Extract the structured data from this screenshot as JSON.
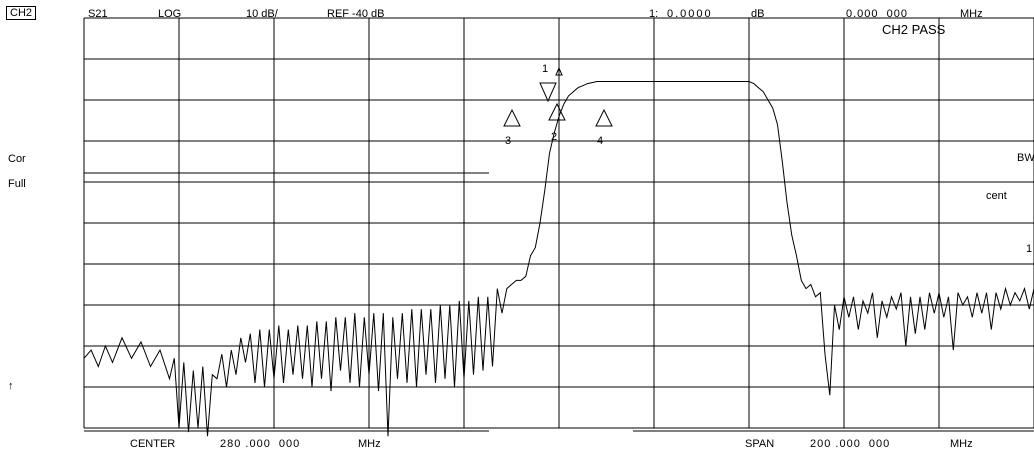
{
  "header": {
    "channel": "CH2",
    "parameter": "S21",
    "format": "LOG",
    "scale": "10 dB/",
    "reference": "REF -40 dB",
    "marker_index": "1:",
    "marker_value": "0.0000",
    "marker_unit": "dB",
    "marker_freq": "0.000  000",
    "marker_freq_unit": "MHz"
  },
  "status": {
    "pass": "CH2 PASS",
    "cor": "Cor",
    "full": "Full",
    "bw": "BW",
    "cent": "cent",
    "right_marker_digit": "1",
    "arrow": "↑"
  },
  "footer": {
    "center_label": "CENTER",
    "center_value": "280 .000  000",
    "center_unit": "MHz",
    "span_label": "SPAN",
    "span_value": "200 .000  000",
    "span_unit": "MHz"
  },
  "markers": [
    {
      "label": "1"
    },
    {
      "label": "2"
    },
    {
      "label": "3"
    },
    {
      "label": "4"
    }
  ],
  "chart_data": {
    "type": "line",
    "grid": true,
    "x_divisions": 10,
    "y_divisions": 10,
    "xlim": [
      180,
      380
    ],
    "ylim": [
      -140,
      -40
    ],
    "x_unit": "MHz",
    "y_unit": "dB",
    "series": [
      {
        "points": [
          [
            180,
            -123
          ],
          [
            181.5,
            -121
          ],
          [
            183,
            -125
          ],
          [
            184.5,
            -120
          ],
          [
            186,
            -124
          ],
          [
            188,
            -118
          ],
          [
            190,
            -123
          ],
          [
            192,
            -119
          ],
          [
            194,
            -125
          ],
          [
            196,
            -121
          ],
          [
            198,
            -128
          ],
          [
            199,
            -123
          ],
          [
            200,
            -140
          ],
          [
            201,
            -124
          ],
          [
            202,
            -141
          ],
          [
            203,
            -126
          ],
          [
            204,
            -140
          ],
          [
            205,
            -125
          ],
          [
            206,
            -142
          ],
          [
            207,
            -127
          ],
          [
            208,
            -128
          ],
          [
            209,
            -122
          ],
          [
            210,
            -130
          ],
          [
            211,
            -121
          ],
          [
            212,
            -127
          ],
          [
            213,
            -118
          ],
          [
            214,
            -124
          ],
          [
            215,
            -117
          ],
          [
            216,
            -129
          ],
          [
            217,
            -116
          ],
          [
            218,
            -130
          ],
          [
            219,
            -116
          ],
          [
            220,
            -128
          ],
          [
            221,
            -115
          ],
          [
            222,
            -129
          ],
          [
            223,
            -116
          ],
          [
            224,
            -127
          ],
          [
            225,
            -115
          ],
          [
            226,
            -128
          ],
          [
            227,
            -115
          ],
          [
            228,
            -130
          ],
          [
            229,
            -114
          ],
          [
            230,
            -128
          ],
          [
            231,
            -114
          ],
          [
            232,
            -131
          ],
          [
            233,
            -113
          ],
          [
            234,
            -126
          ],
          [
            235,
            -113
          ],
          [
            236,
            -129
          ],
          [
            237,
            -112
          ],
          [
            238,
            -130
          ],
          [
            239,
            -113
          ],
          [
            240,
            -127
          ],
          [
            241,
            -112
          ],
          [
            242,
            -131
          ],
          [
            243,
            -112
          ],
          [
            244,
            -142
          ],
          [
            245,
            -113
          ],
          [
            246,
            -128
          ],
          [
            247,
            -112
          ],
          [
            248,
            -129
          ],
          [
            249,
            -111
          ],
          [
            250,
            -130
          ],
          [
            251,
            -111
          ],
          [
            252,
            -127
          ],
          [
            253,
            -111
          ],
          [
            254,
            -129
          ],
          [
            255,
            -110
          ],
          [
            256,
            -128
          ],
          [
            257,
            -110
          ],
          [
            258,
            -130
          ],
          [
            259,
            -109
          ],
          [
            260,
            -128
          ],
          [
            261,
            -109
          ],
          [
            262,
            -127
          ],
          [
            263,
            -108
          ],
          [
            264,
            -126
          ],
          [
            265,
            -108
          ],
          [
            266,
            -125
          ],
          [
            267,
            -106
          ],
          [
            268,
            -112
          ],
          [
            269,
            -106
          ],
          [
            270,
            -105
          ],
          [
            271,
            -104
          ],
          [
            272,
            -104
          ],
          [
            273,
            -103
          ],
          [
            274,
            -98
          ],
          [
            275,
            -96
          ],
          [
            276,
            -90
          ],
          [
            277,
            -82
          ],
          [
            278,
            -73
          ],
          [
            279,
            -68
          ],
          [
            280,
            -64
          ],
          [
            281,
            -61
          ],
          [
            282,
            -59
          ],
          [
            283,
            -58
          ],
          [
            284,
            -57
          ],
          [
            285,
            -56.5
          ],
          [
            286,
            -56
          ],
          [
            288,
            -55.5
          ],
          [
            290,
            -55.5
          ],
          [
            300,
            -55.5
          ],
          [
            310,
            -55.5
          ],
          [
            320,
            -55.5
          ],
          [
            321,
            -56
          ],
          [
            322,
            -57
          ],
          [
            323,
            -58
          ],
          [
            324,
            -60
          ],
          [
            325,
            -62
          ],
          [
            326,
            -66
          ],
          [
            327,
            -75
          ],
          [
            328,
            -85
          ],
          [
            329,
            -93
          ],
          [
            330,
            -98
          ],
          [
            331,
            -104
          ],
          [
            332,
            -106
          ],
          [
            333,
            -105
          ],
          [
            334,
            -108
          ],
          [
            335,
            -107
          ],
          [
            336,
            -122
          ],
          [
            337,
            -132
          ],
          [
            338,
            -110
          ],
          [
            339,
            -116
          ],
          [
            340,
            -108
          ],
          [
            341,
            -113
          ],
          [
            342,
            -108
          ],
          [
            343,
            -116
          ],
          [
            344,
            -109
          ],
          [
            345,
            -112
          ],
          [
            346,
            -107
          ],
          [
            347,
            -118
          ],
          [
            348,
            -109
          ],
          [
            349,
            -113
          ],
          [
            350,
            -108
          ],
          [
            351,
            -111
          ],
          [
            352,
            -107
          ],
          [
            353,
            -120
          ],
          [
            354,
            -108
          ],
          [
            355,
            -117
          ],
          [
            356,
            -108
          ],
          [
            357,
            -116
          ],
          [
            358,
            -107
          ],
          [
            359,
            -112
          ],
          [
            360,
            -107
          ],
          [
            361,
            -113
          ],
          [
            362,
            -108
          ],
          [
            363,
            -121
          ],
          [
            364,
            -107
          ],
          [
            365,
            -110
          ],
          [
            366,
            -108
          ],
          [
            367,
            -113
          ],
          [
            368,
            -107
          ],
          [
            369,
            -112
          ],
          [
            370,
            -107
          ],
          [
            371,
            -116
          ],
          [
            372,
            -107
          ],
          [
            373,
            -111
          ],
          [
            374,
            -106
          ],
          [
            375,
            -110
          ],
          [
            376,
            -107
          ],
          [
            377,
            -109
          ],
          [
            378,
            -106
          ],
          [
            379,
            -111
          ],
          [
            380,
            -106
          ]
        ]
      }
    ]
  }
}
